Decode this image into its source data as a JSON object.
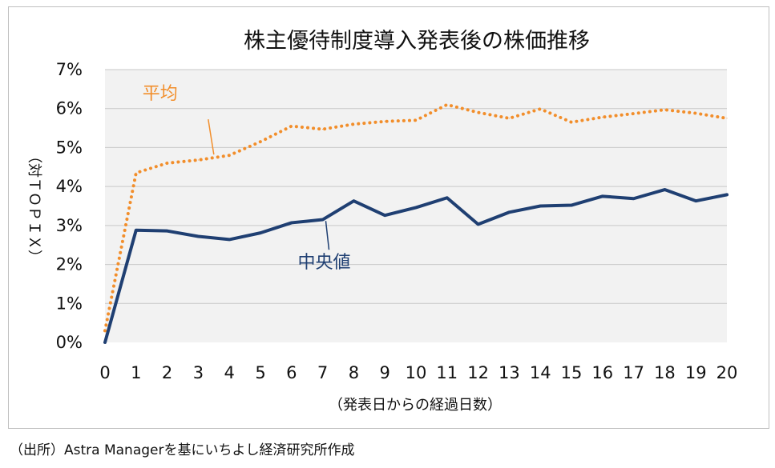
{
  "chart_data": {
    "type": "line",
    "title": "株主優待制度導入発表後の株価推移",
    "xlabel": "（発表日からの経過日数）",
    "ylabel": "（対ＴＯＰＩＸ）",
    "x": [
      0,
      1,
      2,
      3,
      4,
      5,
      6,
      7,
      8,
      9,
      10,
      11,
      12,
      13,
      14,
      15,
      16,
      17,
      18,
      19,
      20
    ],
    "x_tick_labels": [
      "0",
      "1",
      "2",
      "3",
      "4",
      "5",
      "6",
      "7",
      "8",
      "9",
      "10",
      "11",
      "12",
      "13",
      "14",
      "15",
      "16",
      "17",
      "18",
      "19",
      "20"
    ],
    "ylim": [
      0,
      7
    ],
    "y_tick_values": [
      0,
      1,
      2,
      3,
      4,
      5,
      6,
      7
    ],
    "y_tick_labels": [
      "0%",
      "1%",
      "2%",
      "3%",
      "4%",
      "5%",
      "6%",
      "7%"
    ],
    "grid": "horizontal",
    "plot_background": "#f2f2f2",
    "series": [
      {
        "name": "平均",
        "color": "#f28e2b",
        "style": "dotted",
        "values": [
          0.3,
          4.35,
          4.6,
          4.68,
          4.8,
          5.15,
          5.55,
          5.47,
          5.6,
          5.67,
          5.7,
          6.1,
          5.9,
          5.75,
          5.99,
          5.65,
          5.78,
          5.87,
          5.97,
          5.88,
          5.75
        ]
      },
      {
        "name": "中央値",
        "color": "#1f3f72",
        "style": "solid",
        "values": [
          0.0,
          2.88,
          2.86,
          2.72,
          2.64,
          2.81,
          3.07,
          3.15,
          3.63,
          3.26,
          3.46,
          3.71,
          3.03,
          3.34,
          3.5,
          3.52,
          3.75,
          3.69,
          3.92,
          3.63,
          3.79
        ]
      }
    ],
    "annotations": [
      {
        "text": "平均",
        "series": "平均",
        "anchor_x": 3.5
      },
      {
        "text": "中央値",
        "series": "中央値",
        "anchor_x": 7.1
      }
    ]
  },
  "footer": {
    "source": "（出所）Astra Managerを基にいちよし経済研究所作成"
  }
}
